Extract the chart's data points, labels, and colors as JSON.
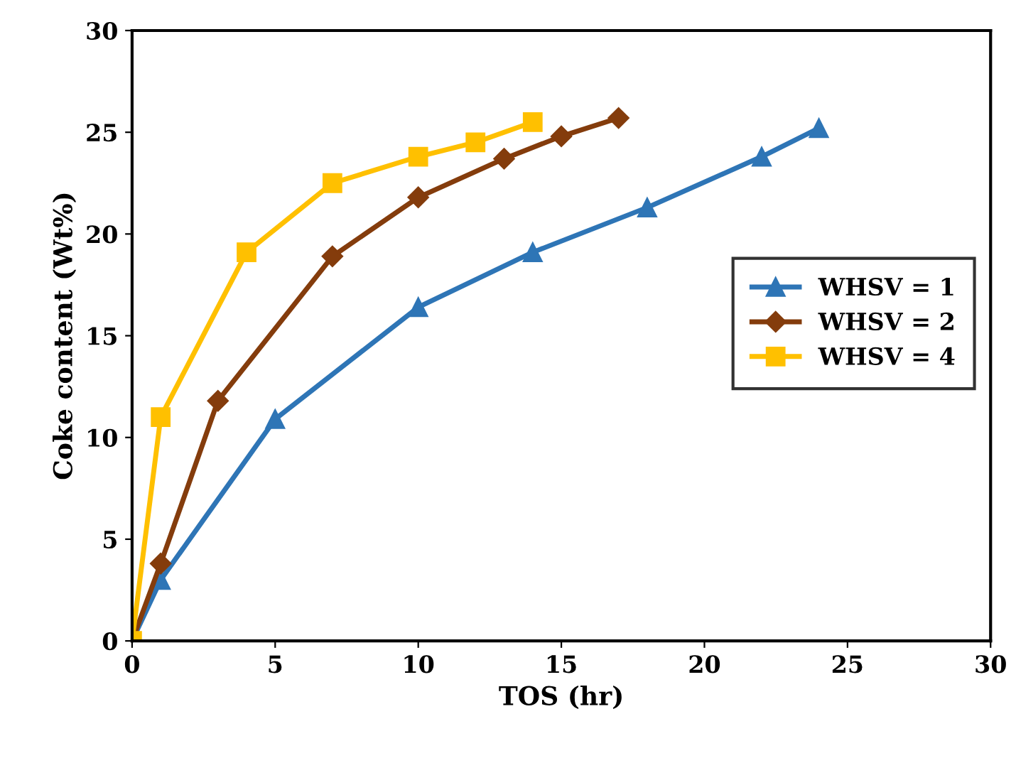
{
  "chart_data": {
    "type": "line",
    "xlabel": "TOS (hr)",
    "ylabel": "Coke content (Wt%)",
    "xlim": [
      0,
      30
    ],
    "ylim": [
      0,
      30
    ],
    "xticks": [
      0,
      5,
      10,
      15,
      20,
      25,
      30
    ],
    "yticks": [
      0,
      5,
      10,
      15,
      20,
      25,
      30
    ],
    "grid": false,
    "legend": "right",
    "series": [
      {
        "name": "WHSV = 1",
        "color": "#2e75b6",
        "marker": "triangle",
        "x": [
          0,
          1,
          5,
          10,
          14,
          18,
          22,
          24
        ],
        "values": [
          0,
          3.0,
          10.9,
          16.4,
          19.1,
          21.3,
          23.8,
          25.2
        ]
      },
      {
        "name": "WHSV = 2",
        "color": "#843c0c",
        "marker": "diamond",
        "x": [
          0,
          1,
          3,
          7,
          10,
          13,
          15,
          17
        ],
        "values": [
          0,
          3.8,
          11.8,
          18.9,
          21.8,
          23.7,
          24.8,
          25.7
        ]
      },
      {
        "name": "WHSV = 4",
        "color": "#ffc000",
        "marker": "square",
        "x": [
          0,
          1,
          4,
          7,
          10,
          12,
          14
        ],
        "values": [
          0,
          11.0,
          19.1,
          22.5,
          23.8,
          24.5,
          25.5
        ]
      }
    ]
  }
}
